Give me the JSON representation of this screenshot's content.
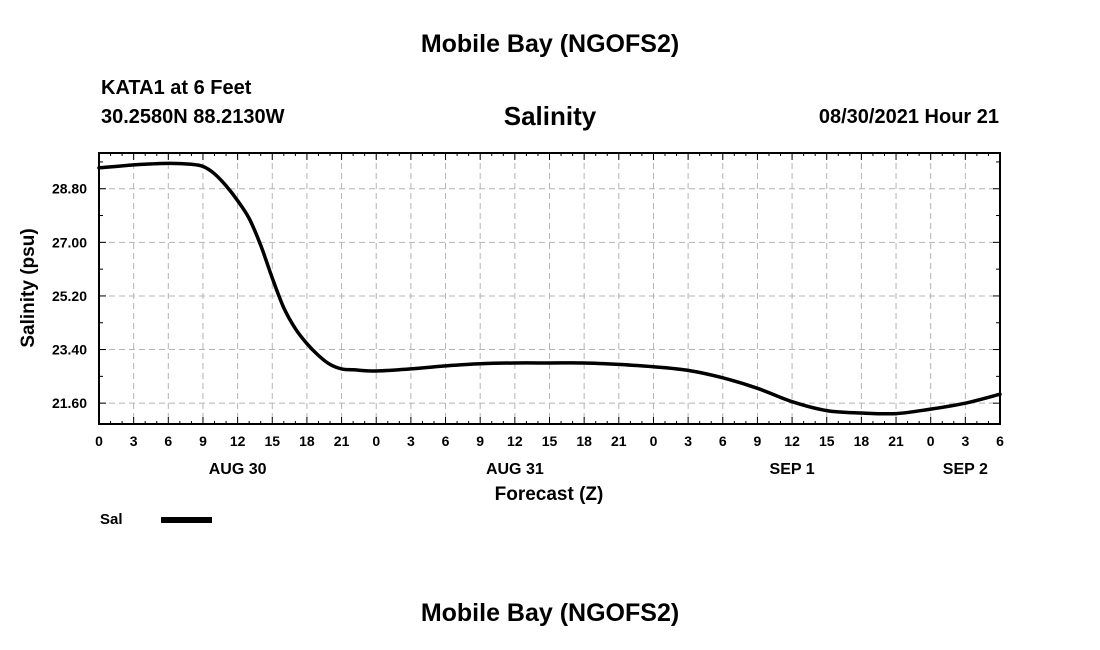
{
  "header": {
    "title": "Mobile Bay (NGOFS2)",
    "station": "KATA1 at 6 Feet",
    "coordinates": "30.2580N  88.2130W",
    "variable": "Salinity",
    "run_time": "08/30/2021 Hour 21"
  },
  "footer": {
    "title": "Mobile Bay (NGOFS2)"
  },
  "chart_data": {
    "type": "line",
    "title": "Salinity",
    "xlabel": "Forecast (Z)",
    "ylabel": "Salinity (psu)",
    "x_unit": "hours from 2021-08-30 00Z",
    "xlim": [
      0,
      78
    ],
    "ylim": [
      20.9,
      30.0
    ],
    "y_ticks": [
      21.6,
      23.4,
      25.2,
      27.0,
      28.8
    ],
    "y_tick_labels": [
      "21.60",
      "23.40",
      "25.20",
      "27.00",
      "28.80"
    ],
    "x_ticks": [
      0,
      3,
      6,
      9,
      12,
      15,
      18,
      21,
      24,
      27,
      30,
      33,
      36,
      39,
      42,
      45,
      48,
      51,
      54,
      57,
      60,
      63,
      66,
      69,
      72,
      75,
      78
    ],
    "x_tick_labels": [
      "0",
      "3",
      "6",
      "9",
      "12",
      "15",
      "18",
      "21",
      "0",
      "3",
      "6",
      "9",
      "12",
      "15",
      "18",
      "21",
      "0",
      "3",
      "6",
      "9",
      "12",
      "15",
      "18",
      "21",
      "0",
      "3",
      "6"
    ],
    "date_labels": [
      {
        "x": 12,
        "label": "AUG 30"
      },
      {
        "x": 36,
        "label": "AUG 31"
      },
      {
        "x": 60,
        "label": "SEP 1"
      },
      {
        "x": 75,
        "label": "SEP 2"
      }
    ],
    "grid": true,
    "legend": "bottom-left",
    "series": [
      {
        "name": "Sal",
        "color": "#000000",
        "x": [
          0,
          3,
          6,
          8,
          9,
          10,
          11,
          12,
          13,
          14,
          15,
          16,
          17,
          18,
          19,
          20,
          21,
          22,
          24,
          27,
          30,
          33,
          36,
          39,
          42,
          45,
          48,
          51,
          54,
          57,
          60,
          63,
          66,
          69,
          72,
          75,
          78
        ],
        "y": [
          29.5,
          29.6,
          29.65,
          29.62,
          29.55,
          29.3,
          28.9,
          28.4,
          27.8,
          26.9,
          25.8,
          24.8,
          24.1,
          23.6,
          23.2,
          22.9,
          22.75,
          22.72,
          22.68,
          22.75,
          22.85,
          22.92,
          22.95,
          22.95,
          22.95,
          22.9,
          22.82,
          22.7,
          22.45,
          22.1,
          21.65,
          21.35,
          21.27,
          21.25,
          21.4,
          21.6,
          21.9
        ]
      }
    ]
  }
}
